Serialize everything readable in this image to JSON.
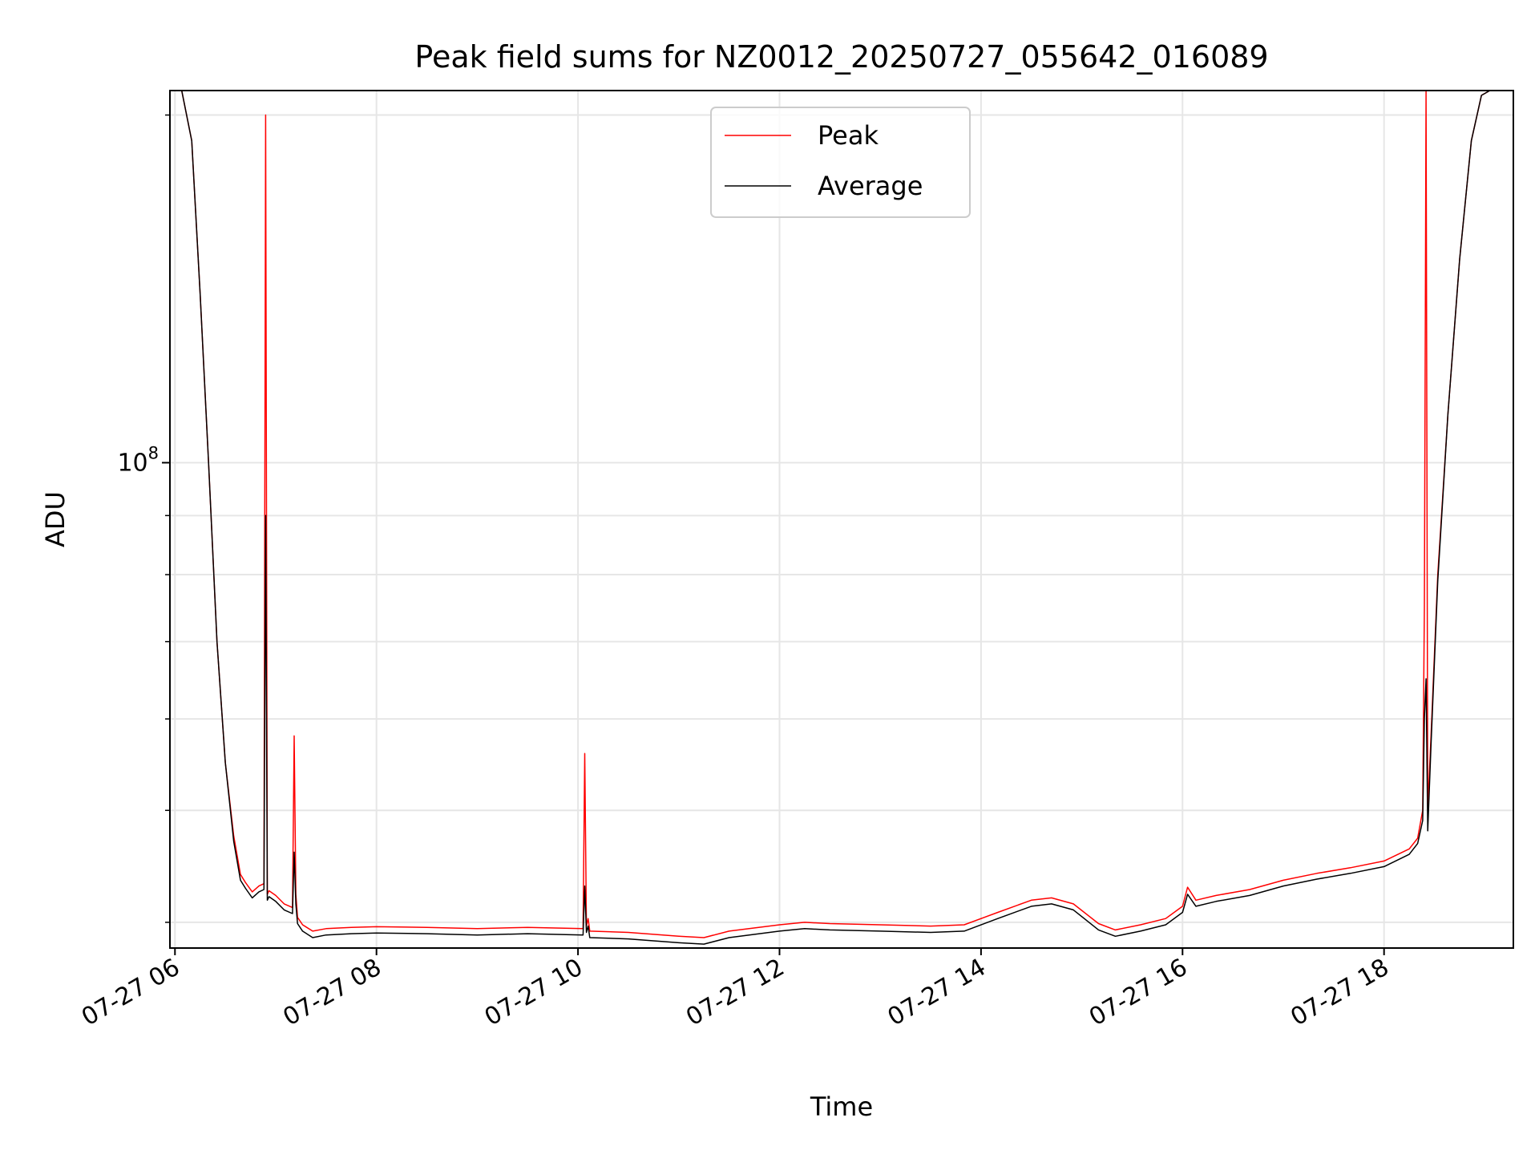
{
  "chart_data": {
    "type": "line",
    "title": "Peak field sums for NZ0012_20250727_055642_016089",
    "xlabel": "Time",
    "ylabel": "ADU",
    "y_scale": "log",
    "ylim": [
      38000000,
      210000000
    ],
    "xlim": [
      "2025-07-27 05:57",
      "2025-07-27 19:17"
    ],
    "x_tick_labels": [
      "07-27 06",
      "07-27 08",
      "07-27 10",
      "07-27 12",
      "07-27 14",
      "07-27 16",
      "07-27 18"
    ],
    "x_ticks": [
      "2025-07-27 06:00",
      "2025-07-27 08:00",
      "2025-07-27 10:00",
      "2025-07-27 12:00",
      "2025-07-27 14:00",
      "2025-07-27 16:00",
      "2025-07-27 18:00"
    ],
    "y_tick_labels": [
      {
        "base": "10",
        "exponent": "8",
        "value": 100000000
      }
    ],
    "y_minor_ticks": [
      40000000,
      50000000,
      60000000,
      70000000,
      80000000,
      90000000,
      200000000
    ],
    "grid": true,
    "legend": {
      "placement": "top-center",
      "entries": [
        "Peak",
        "Average"
      ]
    },
    "colors": {
      "Peak": "#ff0000",
      "Average": "#000000",
      "grid": "#e6e6e6"
    },
    "series": [
      {
        "name": "Peak",
        "x": [
          "2025-07-27 05:57",
          "2025-07-27 06:04",
          "2025-07-27 06:10",
          "2025-07-27 06:15",
          "2025-07-27 06:20",
          "2025-07-27 06:25",
          "2025-07-27 06:30",
          "2025-07-27 06:35",
          "2025-07-27 06:39",
          "2025-07-27 06:42",
          "2025-07-27 06:46",
          "2025-07-27 06:50",
          "2025-07-27 06:53",
          "2025-07-27 06:54",
          "2025-07-27 06:55",
          "2025-07-27 06:56",
          "2025-07-27 07:00",
          "2025-07-27 07:05",
          "2025-07-27 07:10",
          "2025-07-27 07:11",
          "2025-07-27 07:12",
          "2025-07-27 07:13",
          "2025-07-27 07:16",
          "2025-07-27 07:22",
          "2025-07-27 07:30",
          "2025-07-27 07:45",
          "2025-07-27 08:00",
          "2025-07-27 08:30",
          "2025-07-27 09:00",
          "2025-07-27 09:30",
          "2025-07-27 10:03",
          "2025-07-27 10:04",
          "2025-07-27 10:05",
          "2025-07-27 10:06",
          "2025-07-27 10:07",
          "2025-07-27 10:30",
          "2025-07-27 11:00",
          "2025-07-27 11:15",
          "2025-07-27 11:30",
          "2025-07-27 12:00",
          "2025-07-27 12:15",
          "2025-07-27 12:30",
          "2025-07-27 13:00",
          "2025-07-27 13:30",
          "2025-07-27 13:50",
          "2025-07-27 14:10",
          "2025-07-27 14:30",
          "2025-07-27 14:42",
          "2025-07-27 14:55",
          "2025-07-27 15:10",
          "2025-07-27 15:20",
          "2025-07-27 15:35",
          "2025-07-27 15:50",
          "2025-07-27 16:00",
          "2025-07-27 16:03",
          "2025-07-27 16:08",
          "2025-07-27 16:20",
          "2025-07-27 16:40",
          "2025-07-27 17:00",
          "2025-07-27 17:20",
          "2025-07-27 17:40",
          "2025-07-27 18:00",
          "2025-07-27 18:15",
          "2025-07-27 18:20",
          "2025-07-27 18:23",
          "2025-07-27 18:24",
          "2025-07-27 18:25",
          "2025-07-27 18:26",
          "2025-07-27 18:28",
          "2025-07-27 18:32",
          "2025-07-27 18:38",
          "2025-07-27 18:45",
          "2025-07-27 18:52",
          "2025-07-27 18:58",
          "2025-07-27 19:03",
          "2025-07-27 19:06",
          "2025-07-27 19:17"
        ],
        "values": [
          210000000,
          210000000,
          190000000,
          140000000,
          100000000,
          70000000,
          55000000,
          47500000,
          44000000,
          43300000,
          42500000,
          43000000,
          43200000,
          200000000,
          42300000,
          42600000,
          42200000,
          41500000,
          41200000,
          58000000,
          42300000,
          40400000,
          39800000,
          39300000,
          39500000,
          39600000,
          39650000,
          39600000,
          39500000,
          39600000,
          39500000,
          56000000,
          39700000,
          40300000,
          39300000,
          39200000,
          38900000,
          38800000,
          39300000,
          39800000,
          40000000,
          39900000,
          39800000,
          39700000,
          39800000,
          40800000,
          41800000,
          42000000,
          41500000,
          39900000,
          39400000,
          39800000,
          40300000,
          41300000,
          42900000,
          41800000,
          42200000,
          42700000,
          43500000,
          44100000,
          44600000,
          45200000,
          46300000,
          47300000,
          50000000,
          75000000,
          210000000,
          50000000,
          58000000,
          80000000,
          110000000,
          150000000,
          190000000,
          208000000,
          210000000,
          210000000,
          210000000
        ]
      },
      {
        "name": "Average",
        "x": [
          "2025-07-27 05:57",
          "2025-07-27 06:04",
          "2025-07-27 06:10",
          "2025-07-27 06:15",
          "2025-07-27 06:20",
          "2025-07-27 06:25",
          "2025-07-27 06:30",
          "2025-07-27 06:35",
          "2025-07-27 06:39",
          "2025-07-27 06:42",
          "2025-07-27 06:46",
          "2025-07-27 06:50",
          "2025-07-27 06:53",
          "2025-07-27 06:54",
          "2025-07-27 06:55",
          "2025-07-27 06:56",
          "2025-07-27 07:00",
          "2025-07-27 07:05",
          "2025-07-27 07:10",
          "2025-07-27 07:11",
          "2025-07-27 07:12",
          "2025-07-27 07:13",
          "2025-07-27 07:16",
          "2025-07-27 07:22",
          "2025-07-27 07:30",
          "2025-07-27 07:45",
          "2025-07-27 08:00",
          "2025-07-27 08:30",
          "2025-07-27 09:00",
          "2025-07-27 09:30",
          "2025-07-27 10:03",
          "2025-07-27 10:04",
          "2025-07-27 10:05",
          "2025-07-27 10:06",
          "2025-07-27 10:07",
          "2025-07-27 10:30",
          "2025-07-27 11:00",
          "2025-07-27 11:15",
          "2025-07-27 11:30",
          "2025-07-27 12:00",
          "2025-07-27 12:15",
          "2025-07-27 12:30",
          "2025-07-27 13:00",
          "2025-07-27 13:30",
          "2025-07-27 13:50",
          "2025-07-27 14:10",
          "2025-07-27 14:30",
          "2025-07-27 14:42",
          "2025-07-27 14:55",
          "2025-07-27 15:10",
          "2025-07-27 15:20",
          "2025-07-27 15:35",
          "2025-07-27 15:50",
          "2025-07-27 16:00",
          "2025-07-27 16:03",
          "2025-07-27 16:08",
          "2025-07-27 16:20",
          "2025-07-27 16:40",
          "2025-07-27 17:00",
          "2025-07-27 17:20",
          "2025-07-27 17:40",
          "2025-07-27 18:00",
          "2025-07-27 18:15",
          "2025-07-27 18:20",
          "2025-07-27 18:23",
          "2025-07-27 18:24",
          "2025-07-27 18:25",
          "2025-07-27 18:26",
          "2025-07-27 18:28",
          "2025-07-27 18:32",
          "2025-07-27 18:38",
          "2025-07-27 18:45",
          "2025-07-27 18:52",
          "2025-07-27 18:58",
          "2025-07-27 19:03",
          "2025-07-27 19:06",
          "2025-07-27 19:17"
        ],
        "values": [
          210000000,
          210000000,
          190000000,
          140000000,
          100000000,
          70000000,
          55000000,
          47000000,
          43500000,
          42800000,
          42000000,
          42500000,
          42700000,
          90000000,
          41800000,
          42100000,
          41700000,
          41000000,
          40700000,
          46000000,
          41500000,
          39900000,
          39300000,
          38800000,
          39000000,
          39100000,
          39150000,
          39100000,
          39000000,
          39100000,
          39000000,
          43000000,
          39200000,
          39700000,
          38800000,
          38700000,
          38400000,
          38300000,
          38800000,
          39300000,
          39500000,
          39400000,
          39300000,
          39200000,
          39300000,
          40300000,
          41300000,
          41500000,
          41000000,
          39400000,
          38900000,
          39300000,
          39800000,
          40800000,
          42300000,
          41300000,
          41700000,
          42200000,
          43000000,
          43600000,
          44100000,
          44700000,
          45800000,
          46800000,
          49000000,
          60000000,
          65000000,
          48000000,
          57000000,
          79000000,
          110000000,
          150000000,
          190000000,
          208000000,
          210000000,
          210000000,
          210000000
        ]
      }
    ]
  }
}
